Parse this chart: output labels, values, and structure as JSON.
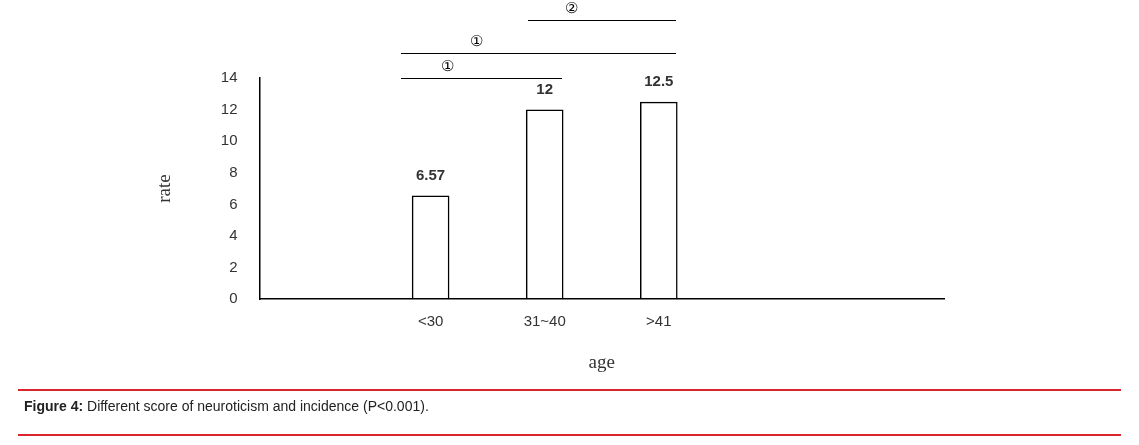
{
  "chart_data": {
    "type": "bar",
    "categories": [
      null,
      "<30",
      "31~40",
      ">41",
      null,
      null
    ],
    "series": [
      {
        "color": "#000000",
        "values": [
          null,
          6.57,
          12,
          12.5,
          null,
          null
        ]
      }
    ],
    "xlabel": "age",
    "ylabel": "rate",
    "ylim": [
      0,
      14
    ],
    "yticks": [
      0,
      2,
      4,
      6,
      8,
      10,
      12,
      14
    ],
    "grid": false,
    "legend": false,
    "data_labels": true,
    "annotations": [
      "②",
      "①",
      "①",
      "Figure 4: Different score of neuroticism and incidence (P<0.001)."
    ]
  }
}
